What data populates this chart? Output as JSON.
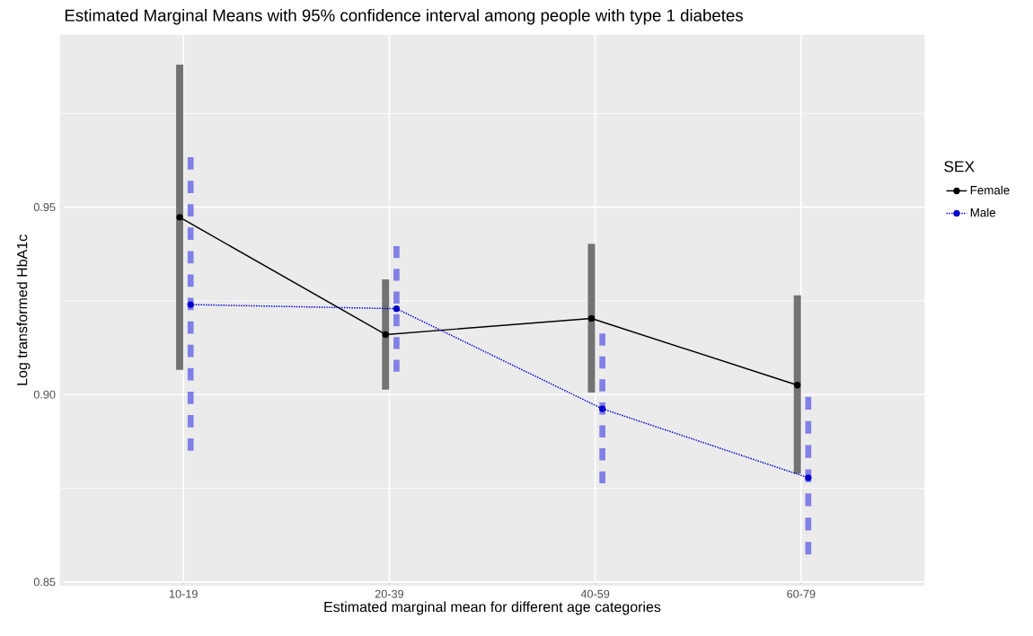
{
  "chart_data": {
    "type": "line",
    "title": "Estimated Marginal Means with 95% confidence interval among people with type 1 diabetes",
    "xlabel": "Estimated marginal mean for different age categories",
    "ylabel": "Log transformed HbA1c",
    "legend_title": "SEX",
    "categories": [
      "10-19",
      "20-39",
      "40-59",
      "60-79"
    ],
    "series": [
      {
        "name": "Female",
        "color": "#000000",
        "line_style": "solid",
        "values": [
          0.9473,
          0.916,
          0.9203,
          0.9025
        ],
        "errors": [
          [
            0.9066,
            0.988
          ],
          [
            0.9013,
            0.9307
          ],
          [
            0.9005,
            0.9402
          ],
          [
            0.8789,
            0.9265
          ]
        ]
      },
      {
        "name": "Male",
        "color": "#0000cc",
        "line_style": "dotted",
        "values": [
          0.924,
          0.9229,
          0.8962,
          0.8778
        ],
        "errors": [
          [
            0.885,
            0.9633
          ],
          [
            0.9061,
            0.9396
          ],
          [
            0.8763,
            0.9163
          ],
          [
            0.8573,
            0.8994
          ]
        ]
      }
    ],
    "ylim": [
      0.849,
      0.996
    ],
    "yticks": [
      0.85,
      {
        "value": 0.875,
        "label": null
      },
      {
        "value": 0.9,
        "label": "0.90"
      },
      {
        "value": 0.925,
        "label": null
      },
      0.95,
      {
        "value": 0.975,
        "label": null
      }
    ],
    "grid": true,
    "legend": "right",
    "marker": "circle"
  }
}
